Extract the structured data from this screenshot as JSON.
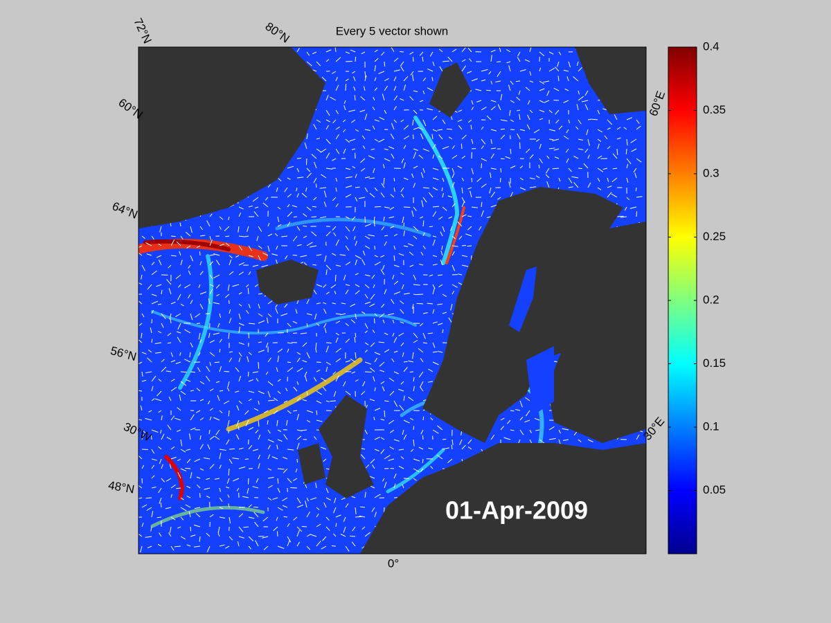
{
  "title": "Every 5 vector shown",
  "date": "01-Apr-2009",
  "graticule_labels": [
    "72°N",
    "80°N",
    "60°N",
    "64°N",
    "56°N",
    "30°W",
    "48°N",
    "0°",
    "30°E",
    "60°E"
  ],
  "colorbar": {
    "lim": [
      0,
      0.4
    ],
    "ticks": [
      0.05,
      0.1,
      0.15,
      0.2,
      0.25,
      0.3,
      0.35,
      0.4
    ]
  }
}
